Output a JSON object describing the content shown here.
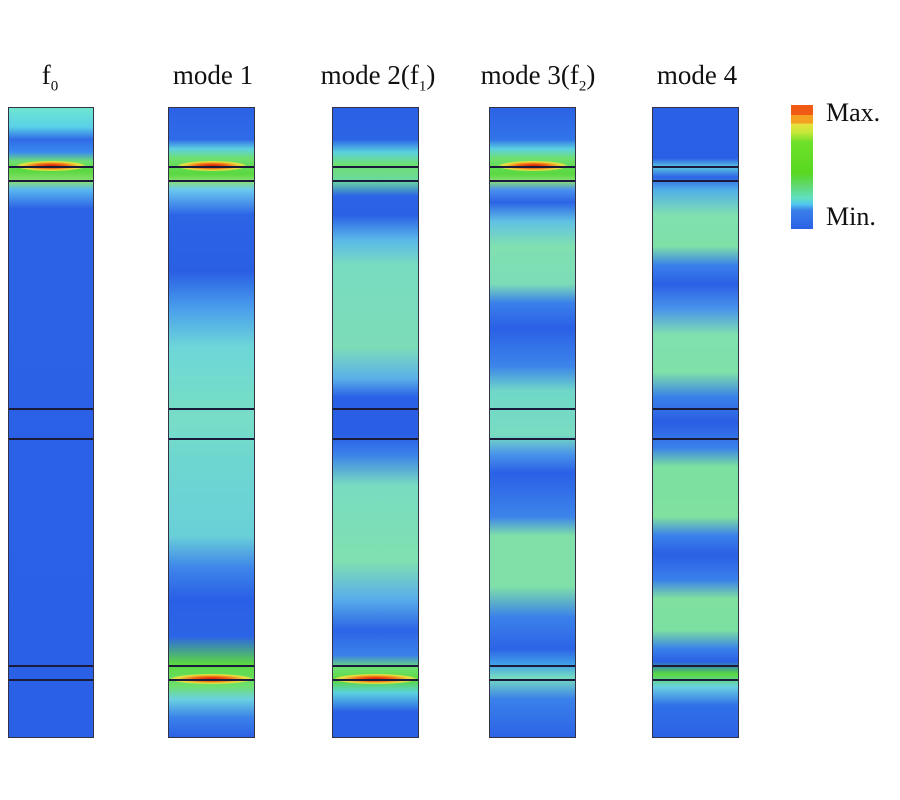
{
  "columns": [
    {
      "label": "f",
      "sub": "0",
      "suffix": ""
    },
    {
      "label": "mode 1",
      "sub": "",
      "suffix": ""
    },
    {
      "label": "mode 2(f",
      "sub": "1",
      "suffix": ")"
    },
    {
      "label": "mode 3(f",
      "sub": "2",
      "suffix": ")"
    },
    {
      "label": "mode 4",
      "sub": "",
      "suffix": ""
    }
  ],
  "legend": {
    "max_label": "Max.",
    "min_label": "Min.",
    "colors": [
      "#f05a14",
      "#f4a020",
      "#e8e040",
      "#58d820",
      "#60e0c0",
      "#3a80ea",
      "#2a60e6"
    ]
  }
}
